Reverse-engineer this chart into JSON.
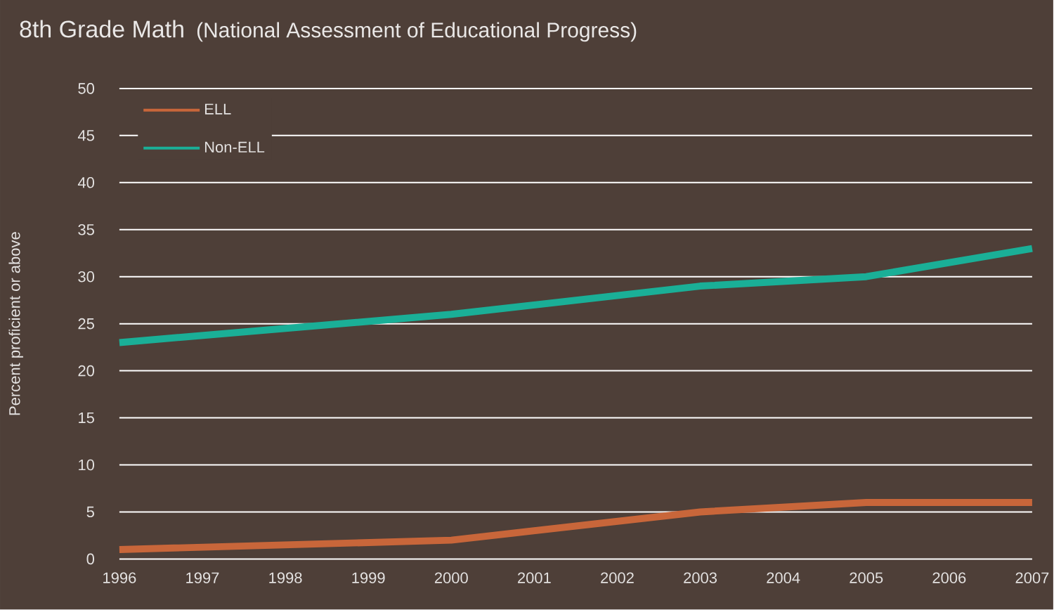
{
  "chart_data": {
    "type": "line",
    "title": "8th Grade Math",
    "subtitle": "(National Assessment of Educational Progress)",
    "ylabel": "Percent proficient or above",
    "x": [
      1996,
      2000,
      2003,
      2005,
      2007
    ],
    "series": [
      {
        "name": "ELL",
        "color": "#c8663a",
        "values": [
          1,
          2,
          5,
          6,
          6
        ]
      },
      {
        "name": "Non-ELL",
        "color": "#1aaf97",
        "values": [
          23,
          26,
          29,
          30,
          33
        ]
      }
    ],
    "xlim": [
      1996,
      2007
    ],
    "xticks": [
      1996,
      1997,
      1998,
      1999,
      2000,
      2001,
      2002,
      2003,
      2004,
      2005,
      2006,
      2007
    ],
    "ylim": [
      0,
      50
    ],
    "yticks": [
      0,
      5,
      10,
      15,
      20,
      25,
      30,
      35,
      40,
      45,
      50
    ],
    "grid": "y",
    "legend": "top left",
    "marker": "none",
    "line_style": "solid"
  }
}
